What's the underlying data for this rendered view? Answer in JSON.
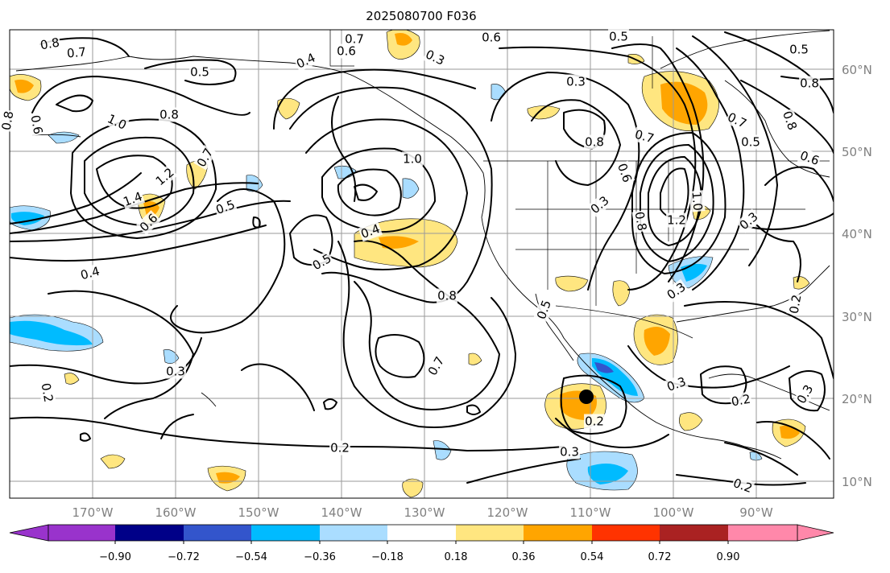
{
  "title": "2025080700 F036",
  "map": {
    "lat_labels": [
      "60°N",
      "50°N",
      "40°N",
      "30°N",
      "20°N",
      "10°N"
    ],
    "lon_labels": [
      "170°W",
      "160°W",
      "150°W",
      "140°W",
      "130°W",
      "120°W",
      "110°W",
      "100°W",
      "90°W"
    ],
    "gridlines": true,
    "contour_labels": [
      "0.8",
      "0.7",
      "0.7",
      "0.6",
      "0.6",
      "0.5",
      "0.5",
      "0.4",
      "0.3",
      "0.8",
      "0.8",
      "0.5",
      "0.6",
      "1.0",
      "0.8",
      "0.7",
      "1.2",
      "1.4",
      "0.6",
      "0.5",
      "1.0",
      "0.4",
      "0.5",
      "0.4",
      "0.8",
      "0.3",
      "0.8",
      "0.7",
      "0.6",
      "0.8",
      "1.2",
      "1.0",
      "0.7",
      "0.8",
      "0.5",
      "0.6",
      "0.3",
      "0.3",
      "0.3",
      "0.2",
      "0.7",
      "0.5",
      "0.3",
      "0.2",
      "0.3",
      "0.2",
      "0.3",
      "0.2",
      "0.2",
      "0.3",
      "0.2"
    ],
    "marker": "storm-center-dot"
  },
  "colorbar": {
    "tick_labels": [
      "−0.90",
      "−0.72",
      "−0.54",
      "−0.36",
      "−0.18",
      "0.18",
      "0.36",
      "0.54",
      "0.72",
      "0.90"
    ],
    "colors": [
      "#9933cc",
      "#000088",
      "#3355cc",
      "#00bbff",
      "#aaddff",
      "#ffffff",
      "#ffe680",
      "#ffa500",
      "#ff3300",
      "#aa2222",
      "#ff88aa"
    ],
    "extend": "both"
  }
}
